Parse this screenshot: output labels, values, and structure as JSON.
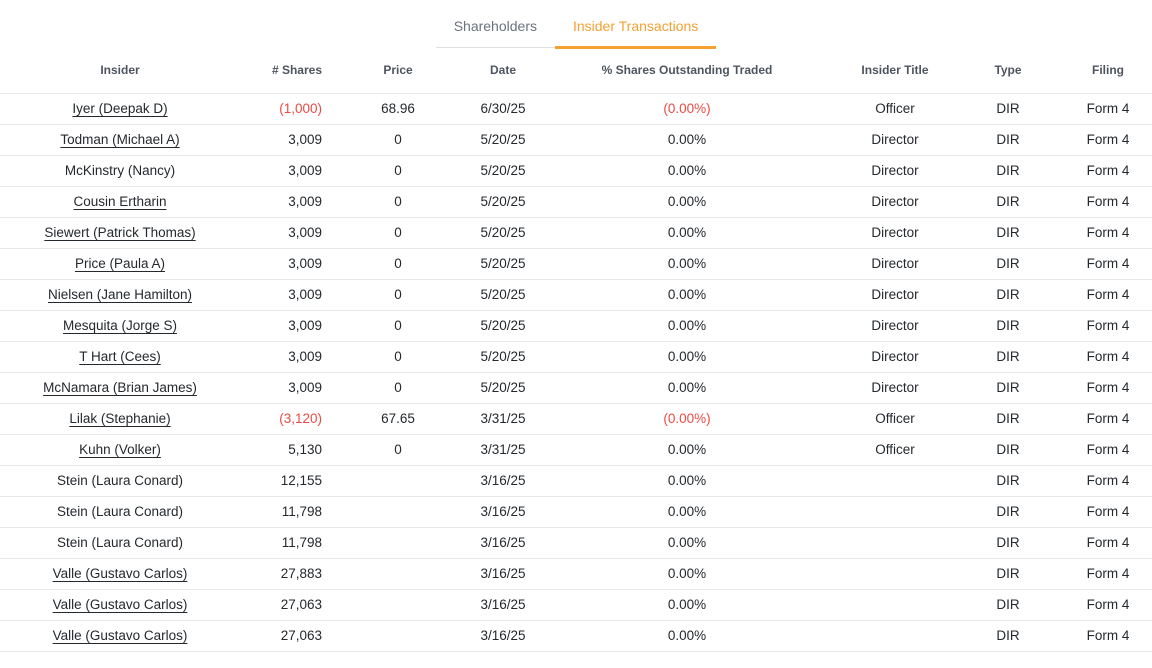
{
  "colors": {
    "accent_orange": "#f4a032",
    "negative_red": "#ea4a44",
    "header_text": "#4e5560",
    "inactive_tab_text": "#6b7280",
    "row_border": "#e7e8ea"
  },
  "tabs": [
    {
      "id": "shareholders",
      "label": "Shareholders",
      "active": false
    },
    {
      "id": "insider-transactions",
      "label": "Insider Transactions",
      "active": true
    }
  ],
  "table": {
    "columns": [
      {
        "id": "insider",
        "label": "Insider",
        "align": "center"
      },
      {
        "id": "shares",
        "label": "# Shares",
        "align": "right"
      },
      {
        "id": "price",
        "label": "Price",
        "align": "center"
      },
      {
        "id": "date",
        "label": "Date",
        "align": "center"
      },
      {
        "id": "pct",
        "label": "% Shares Outstanding Traded",
        "align": "center"
      },
      {
        "id": "title",
        "label": "Insider Title",
        "align": "center"
      },
      {
        "id": "type",
        "label": "Type",
        "align": "center"
      },
      {
        "id": "filing",
        "label": "Filing",
        "align": "center"
      }
    ],
    "rows": [
      {
        "insider": "Iyer (Deepak D)",
        "link": true,
        "shares": "(1,000)",
        "shares_negative": true,
        "price": "68.96",
        "date": "6/30/25",
        "pct": "(0.00%)",
        "pct_negative": true,
        "title": "Officer",
        "type": "DIR",
        "filing": "Form 4"
      },
      {
        "insider": "Todman (Michael A)",
        "link": true,
        "shares": "3,009",
        "shares_negative": false,
        "price": "0",
        "date": "5/20/25",
        "pct": "0.00%",
        "pct_negative": false,
        "title": "Director",
        "type": "DIR",
        "filing": "Form 4"
      },
      {
        "insider": "McKinstry (Nancy)",
        "link": false,
        "shares": "3,009",
        "shares_negative": false,
        "price": "0",
        "date": "5/20/25",
        "pct": "0.00%",
        "pct_negative": false,
        "title": "Director",
        "type": "DIR",
        "filing": "Form 4"
      },
      {
        "insider": "Cousin Ertharin",
        "link": true,
        "shares": "3,009",
        "shares_negative": false,
        "price": "0",
        "date": "5/20/25",
        "pct": "0.00%",
        "pct_negative": false,
        "title": "Director",
        "type": "DIR",
        "filing": "Form 4"
      },
      {
        "insider": "Siewert (Patrick Thomas)",
        "link": true,
        "shares": "3,009",
        "shares_negative": false,
        "price": "0",
        "date": "5/20/25",
        "pct": "0.00%",
        "pct_negative": false,
        "title": "Director",
        "type": "DIR",
        "filing": "Form 4"
      },
      {
        "insider": "Price (Paula A)",
        "link": true,
        "shares": "3,009",
        "shares_negative": false,
        "price": "0",
        "date": "5/20/25",
        "pct": "0.00%",
        "pct_negative": false,
        "title": "Director",
        "type": "DIR",
        "filing": "Form 4"
      },
      {
        "insider": "Nielsen (Jane Hamilton)",
        "link": true,
        "shares": "3,009",
        "shares_negative": false,
        "price": "0",
        "date": "5/20/25",
        "pct": "0.00%",
        "pct_negative": false,
        "title": "Director",
        "type": "DIR",
        "filing": "Form 4"
      },
      {
        "insider": "Mesquita (Jorge S)",
        "link": true,
        "shares": "3,009",
        "shares_negative": false,
        "price": "0",
        "date": "5/20/25",
        "pct": "0.00%",
        "pct_negative": false,
        "title": "Director",
        "type": "DIR",
        "filing": "Form 4"
      },
      {
        "insider": "T Hart (Cees)",
        "link": true,
        "shares": "3,009",
        "shares_negative": false,
        "price": "0",
        "date": "5/20/25",
        "pct": "0.00%",
        "pct_negative": false,
        "title": "Director",
        "type": "DIR",
        "filing": "Form 4"
      },
      {
        "insider": "McNamara (Brian James)",
        "link": true,
        "shares": "3,009",
        "shares_negative": false,
        "price": "0",
        "date": "5/20/25",
        "pct": "0.00%",
        "pct_negative": false,
        "title": "Director",
        "type": "DIR",
        "filing": "Form 4"
      },
      {
        "insider": "Lilak (Stephanie)",
        "link": true,
        "shares": "(3,120)",
        "shares_negative": true,
        "price": "67.65",
        "date": "3/31/25",
        "pct": "(0.00%)",
        "pct_negative": true,
        "title": "Officer",
        "type": "DIR",
        "filing": "Form 4"
      },
      {
        "insider": "Kuhn (Volker)",
        "link": true,
        "shares": "5,130",
        "shares_negative": false,
        "price": "0",
        "date": "3/31/25",
        "pct": "0.00%",
        "pct_negative": false,
        "title": "Officer",
        "type": "DIR",
        "filing": "Form 4"
      },
      {
        "insider": "Stein (Laura Conard)",
        "link": false,
        "shares": "12,155",
        "shares_negative": false,
        "price": "",
        "date": "3/16/25",
        "pct": "0.00%",
        "pct_negative": false,
        "title": "",
        "type": "DIR",
        "filing": "Form 4"
      },
      {
        "insider": "Stein (Laura Conard)",
        "link": false,
        "shares": "11,798",
        "shares_negative": false,
        "price": "",
        "date": "3/16/25",
        "pct": "0.00%",
        "pct_negative": false,
        "title": "",
        "type": "DIR",
        "filing": "Form 4"
      },
      {
        "insider": "Stein (Laura Conard)",
        "link": false,
        "shares": "11,798",
        "shares_negative": false,
        "price": "",
        "date": "3/16/25",
        "pct": "0.00%",
        "pct_negative": false,
        "title": "",
        "type": "DIR",
        "filing": "Form 4"
      },
      {
        "insider": "Valle (Gustavo Carlos)",
        "link": true,
        "shares": "27,883",
        "shares_negative": false,
        "price": "",
        "date": "3/16/25",
        "pct": "0.00%",
        "pct_negative": false,
        "title": "",
        "type": "DIR",
        "filing": "Form 4"
      },
      {
        "insider": "Valle (Gustavo Carlos)",
        "link": true,
        "shares": "27,063",
        "shares_negative": false,
        "price": "",
        "date": "3/16/25",
        "pct": "0.00%",
        "pct_negative": false,
        "title": "",
        "type": "DIR",
        "filing": "Form 4"
      },
      {
        "insider": "Valle (Gustavo Carlos)",
        "link": true,
        "shares": "27,063",
        "shares_negative": false,
        "price": "",
        "date": "3/16/25",
        "pct": "0.00%",
        "pct_negative": false,
        "title": "",
        "type": "DIR",
        "filing": "Form 4"
      }
    ]
  }
}
